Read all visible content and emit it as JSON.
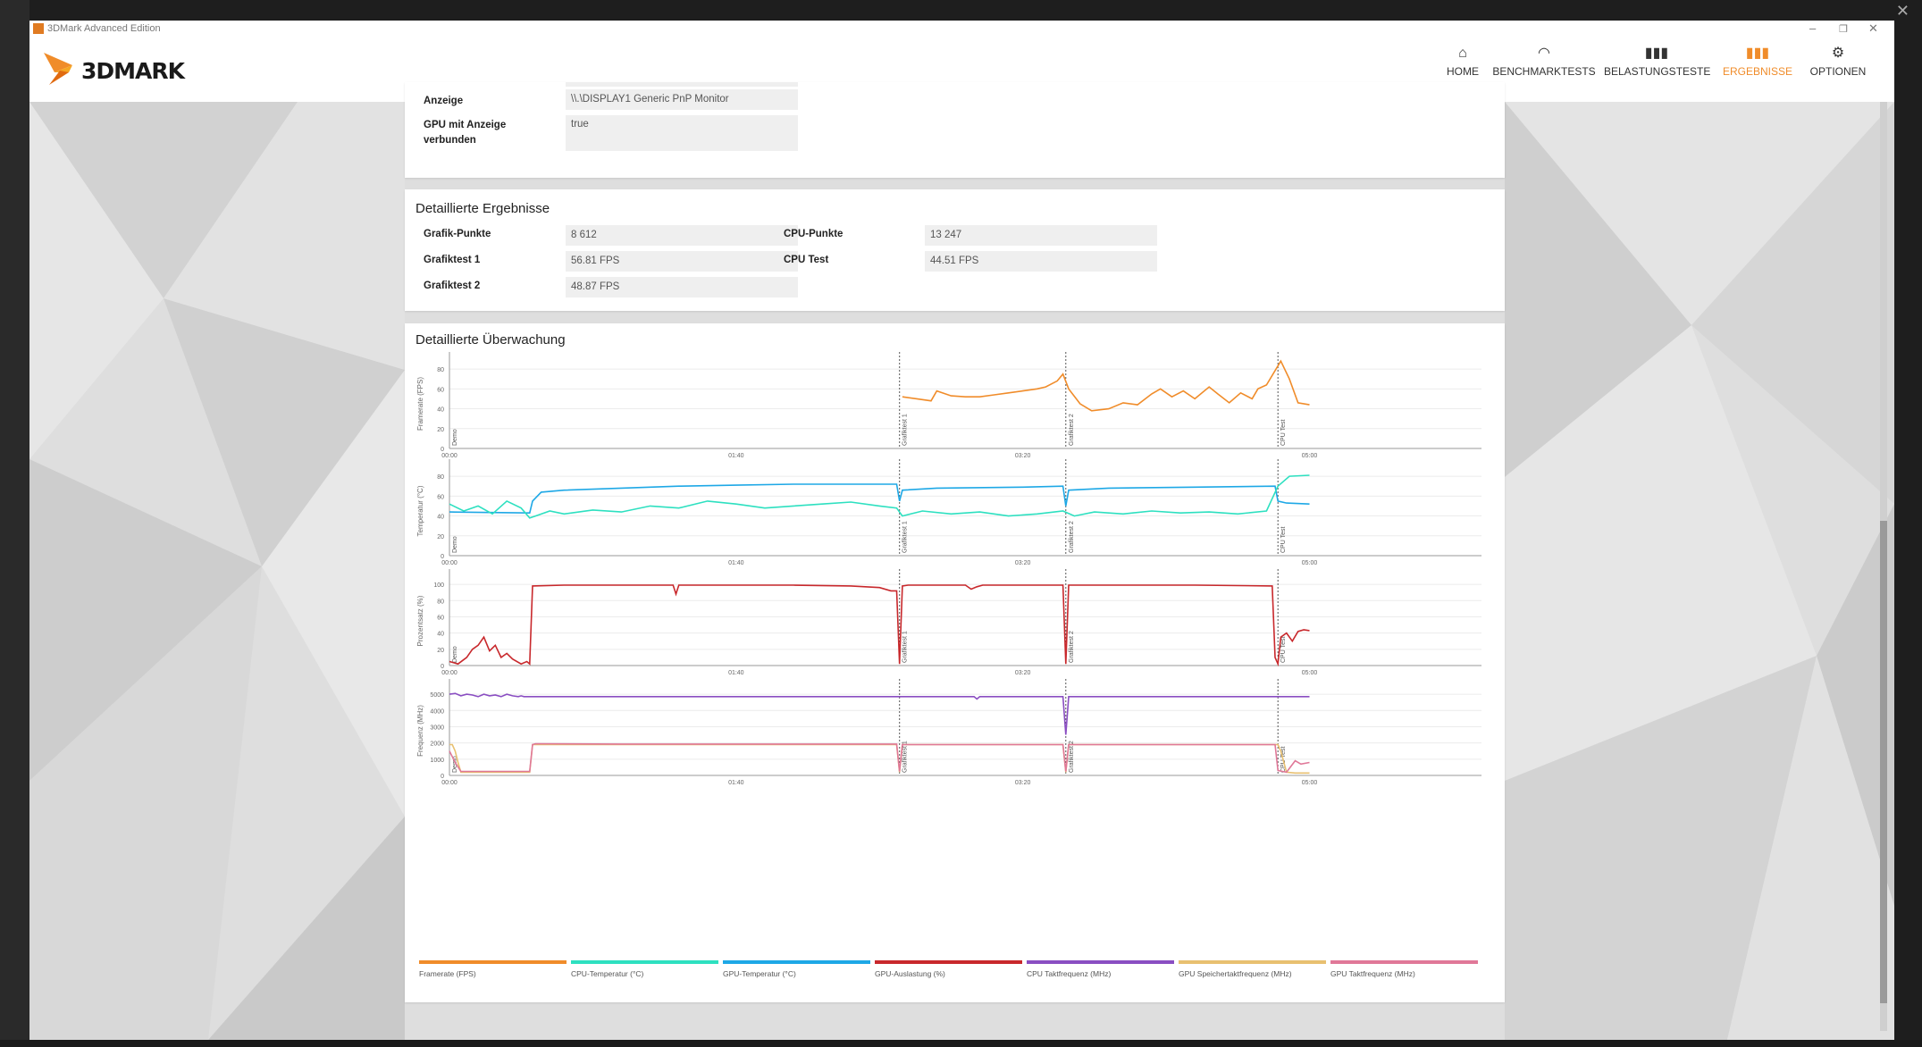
{
  "window": {
    "title": "3DMark Advanced Edition"
  },
  "brand": {
    "name": "3DMARK",
    "accent": "#f08c2a"
  },
  "nav": [
    {
      "label": "HOME",
      "icon": "home-icon",
      "active": false
    },
    {
      "label": "BENCHMARKTESTS",
      "icon": "gauge-icon",
      "active": false
    },
    {
      "label": "BELASTUNGSTESTE",
      "icon": "bar-chart-icon",
      "active": false
    },
    {
      "label": "ERGEBNISSE",
      "icon": "results-icon",
      "active": true
    },
    {
      "label": "OPTIONEN",
      "icon": "gear-icon",
      "active": false
    }
  ],
  "display_card": {
    "rows": [
      {
        "label": "Anzeige",
        "value": "\\\\.\\DISPLAY1 Generic PnP Monitor"
      },
      {
        "label": "GPU mit Anzeige verbunden",
        "value": "true"
      }
    ]
  },
  "detailed_results": {
    "title": "Detaillierte Ergebnisse",
    "left": [
      {
        "label": "Grafik-Punkte",
        "value": "8 612"
      },
      {
        "label": "Grafiktest 1",
        "value": "56.81 FPS"
      },
      {
        "label": "Grafiktest 2",
        "value": "48.87 FPS"
      }
    ],
    "right": [
      {
        "label": "CPU-Punkte",
        "value": "13 247"
      },
      {
        "label": "CPU Test",
        "value": "44.51 FPS"
      }
    ]
  },
  "monitoring": {
    "title": "Detaillierte Überwachung",
    "time_ticks": [
      "00:00",
      "01:40",
      "03:20",
      "05:00"
    ],
    "markers": [
      {
        "label": "Demo",
        "t": 0
      },
      {
        "label": "Grafiktest 1",
        "t": 157
      },
      {
        "label": "Grafiktest 2",
        "t": 215
      },
      {
        "label": "CPU Test",
        "t": 289
      }
    ],
    "legend": [
      {
        "label": "Framerate (FPS)",
        "color": "#f08c2a"
      },
      {
        "label": "CPU-Temperatur (°C)",
        "color": "#2de0c0"
      },
      {
        "label": "GPU-Temperatur (°C)",
        "color": "#1ea8e6"
      },
      {
        "label": "GPU-Auslastung (%)",
        "color": "#c8282c"
      },
      {
        "label": "CPU Taktfrequenz (MHz)",
        "color": "#8a4ec2"
      },
      {
        "label": "GPU Speichertaktfrequenz (MHz)",
        "color": "#e8c070"
      },
      {
        "label": "GPU Taktfrequenz (MHz)",
        "color": "#e07898"
      }
    ]
  },
  "chart_data": [
    {
      "type": "line",
      "ylabel": "Framerate (FPS)",
      "x_unit": "seconds",
      "ylim": [
        0,
        90
      ],
      "yticks": [
        0,
        20,
        40,
        60,
        80
      ],
      "series": [
        {
          "name": "Framerate (FPS)",
          "color": "#f08c2a",
          "x": [
            158,
            163,
            168,
            170,
            175,
            180,
            185,
            190,
            195,
            200,
            205,
            208,
            212,
            214,
            216,
            220,
            224,
            230,
            235,
            240,
            245,
            248,
            252,
            256,
            260,
            265,
            268,
            272,
            276,
            280,
            282,
            285,
            290,
            293,
            296,
            300
          ],
          "y": [
            52,
            50,
            48,
            58,
            53,
            52,
            52,
            54,
            56,
            58,
            60,
            62,
            68,
            75,
            60,
            45,
            38,
            40,
            46,
            44,
            55,
            60,
            52,
            58,
            50,
            62,
            55,
            46,
            56,
            50,
            60,
            64,
            88,
            70,
            46,
            44
          ]
        }
      ]
    },
    {
      "type": "line",
      "ylabel": "Temperatur (°C)",
      "x_unit": "seconds",
      "ylim": [
        0,
        90
      ],
      "yticks": [
        0,
        20,
        40,
        60,
        80
      ],
      "series": [
        {
          "name": "GPU-Temperatur (°C)",
          "color": "#1ea8e6",
          "x": [
            0,
            28,
            29,
            32,
            40,
            60,
            80,
            100,
            120,
            140,
            156,
            157,
            158,
            170,
            200,
            214,
            215,
            216,
            230,
            260,
            288,
            289,
            292,
            300
          ],
          "y": [
            44,
            43,
            55,
            64,
            66,
            68,
            70,
            71,
            72,
            72,
            72,
            55,
            66,
            68,
            69,
            70,
            50,
            66,
            68,
            69,
            70,
            55,
            53,
            52
          ]
        },
        {
          "name": "CPU-Temperatur (°C)",
          "color": "#2de0c0",
          "x": [
            0,
            5,
            10,
            15,
            20,
            25,
            28,
            30,
            35,
            40,
            50,
            60,
            70,
            80,
            90,
            100,
            110,
            120,
            130,
            140,
            150,
            156,
            158,
            165,
            175,
            185,
            195,
            205,
            214,
            218,
            225,
            235,
            245,
            255,
            265,
            275,
            285,
            289,
            293,
            300
          ],
          "y": [
            52,
            45,
            50,
            42,
            55,
            48,
            38,
            40,
            45,
            42,
            46,
            44,
            50,
            48,
            55,
            52,
            48,
            50,
            52,
            54,
            50,
            48,
            40,
            45,
            42,
            44,
            40,
            42,
            45,
            40,
            44,
            42,
            45,
            43,
            44,
            42,
            45,
            70,
            80,
            81
          ]
        }
      ]
    },
    {
      "type": "line",
      "ylabel": "Prozentsatz (%)",
      "x_unit": "seconds",
      "ylim": [
        0,
        110
      ],
      "yticks": [
        0,
        20,
        40,
        60,
        80,
        100
      ],
      "series": [
        {
          "name": "GPU-Auslastung (%)",
          "color": "#c8282c",
          "x": [
            0,
            3,
            6,
            8,
            10,
            12,
            14,
            16,
            18,
            20,
            22,
            25,
            27,
            28,
            29,
            40,
            60,
            78,
            79,
            80,
            100,
            120,
            140,
            150,
            154,
            156,
            157,
            158,
            160,
            180,
            182,
            184,
            186,
            214,
            215,
            216,
            240,
            260,
            287,
            288,
            289,
            290,
            292,
            294,
            296,
            298,
            300
          ],
          "y": [
            5,
            2,
            10,
            20,
            25,
            35,
            18,
            25,
            10,
            15,
            8,
            2,
            5,
            2,
            98,
            99,
            99,
            99,
            88,
            99,
            99,
            99,
            98,
            96,
            92,
            92,
            2,
            98,
            99,
            99,
            94,
            97,
            99,
            99,
            2,
            99,
            99,
            99,
            98,
            10,
            2,
            35,
            40,
            30,
            42,
            44,
            43
          ]
        }
      ]
    },
    {
      "type": "line",
      "ylabel": "Frequenz (MHz)",
      "x_unit": "seconds",
      "ylim": [
        0,
        5500
      ],
      "yticks": [
        0,
        1000,
        2000,
        3000,
        4000,
        5000
      ],
      "series": [
        {
          "name": "CPU Taktfrequenz (MHz)",
          "color": "#8a4ec2",
          "x": [
            0,
            2,
            4,
            6,
            8,
            10,
            12,
            14,
            16,
            18,
            20,
            22,
            24,
            25,
            26,
            30,
            80,
            120,
            160,
            183,
            184,
            185,
            210,
            214,
            215,
            216,
            217,
            220,
            260,
            289,
            300
          ],
          "y": [
            5000,
            5050,
            4900,
            5000,
            4950,
            4850,
            5000,
            4900,
            4950,
            4850,
            5000,
            4900,
            4850,
            4900,
            4850,
            4850,
            4850,
            4850,
            4850,
            4850,
            4700,
            4850,
            4850,
            4850,
            2500,
            4850,
            4850,
            4850,
            4850,
            4850,
            4850
          ]
        },
        {
          "name": "GPU Speichertaktfrequenz (MHz)",
          "color": "#e8c070",
          "x": [
            0,
            1,
            2,
            3,
            4,
            28,
            29,
            30,
            156,
            157,
            158,
            214,
            215,
            216,
            288,
            289,
            290,
            292,
            295,
            300
          ],
          "y": [
            1900,
            1900,
            1500,
            800,
            200,
            200,
            1900,
            1900,
            1900,
            200,
            1900,
            1900,
            200,
            1900,
            1900,
            1900,
            1500,
            200,
            150,
            150
          ]
        },
        {
          "name": "GPU Taktfrequenz (MHz)",
          "color": "#e07898",
          "x": [
            0,
            2,
            4,
            6,
            28,
            29,
            30,
            60,
            100,
            156,
            157,
            158,
            200,
            214,
            215,
            216,
            260,
            288,
            289,
            292,
            295,
            297,
            300
          ],
          "y": [
            1500,
            800,
            250,
            250,
            250,
            1900,
            1950,
            1930,
            1930,
            1930,
            250,
            1900,
            1900,
            1900,
            250,
            1900,
            1900,
            1900,
            300,
            200,
            900,
            700,
            800
          ]
        }
      ]
    }
  ]
}
